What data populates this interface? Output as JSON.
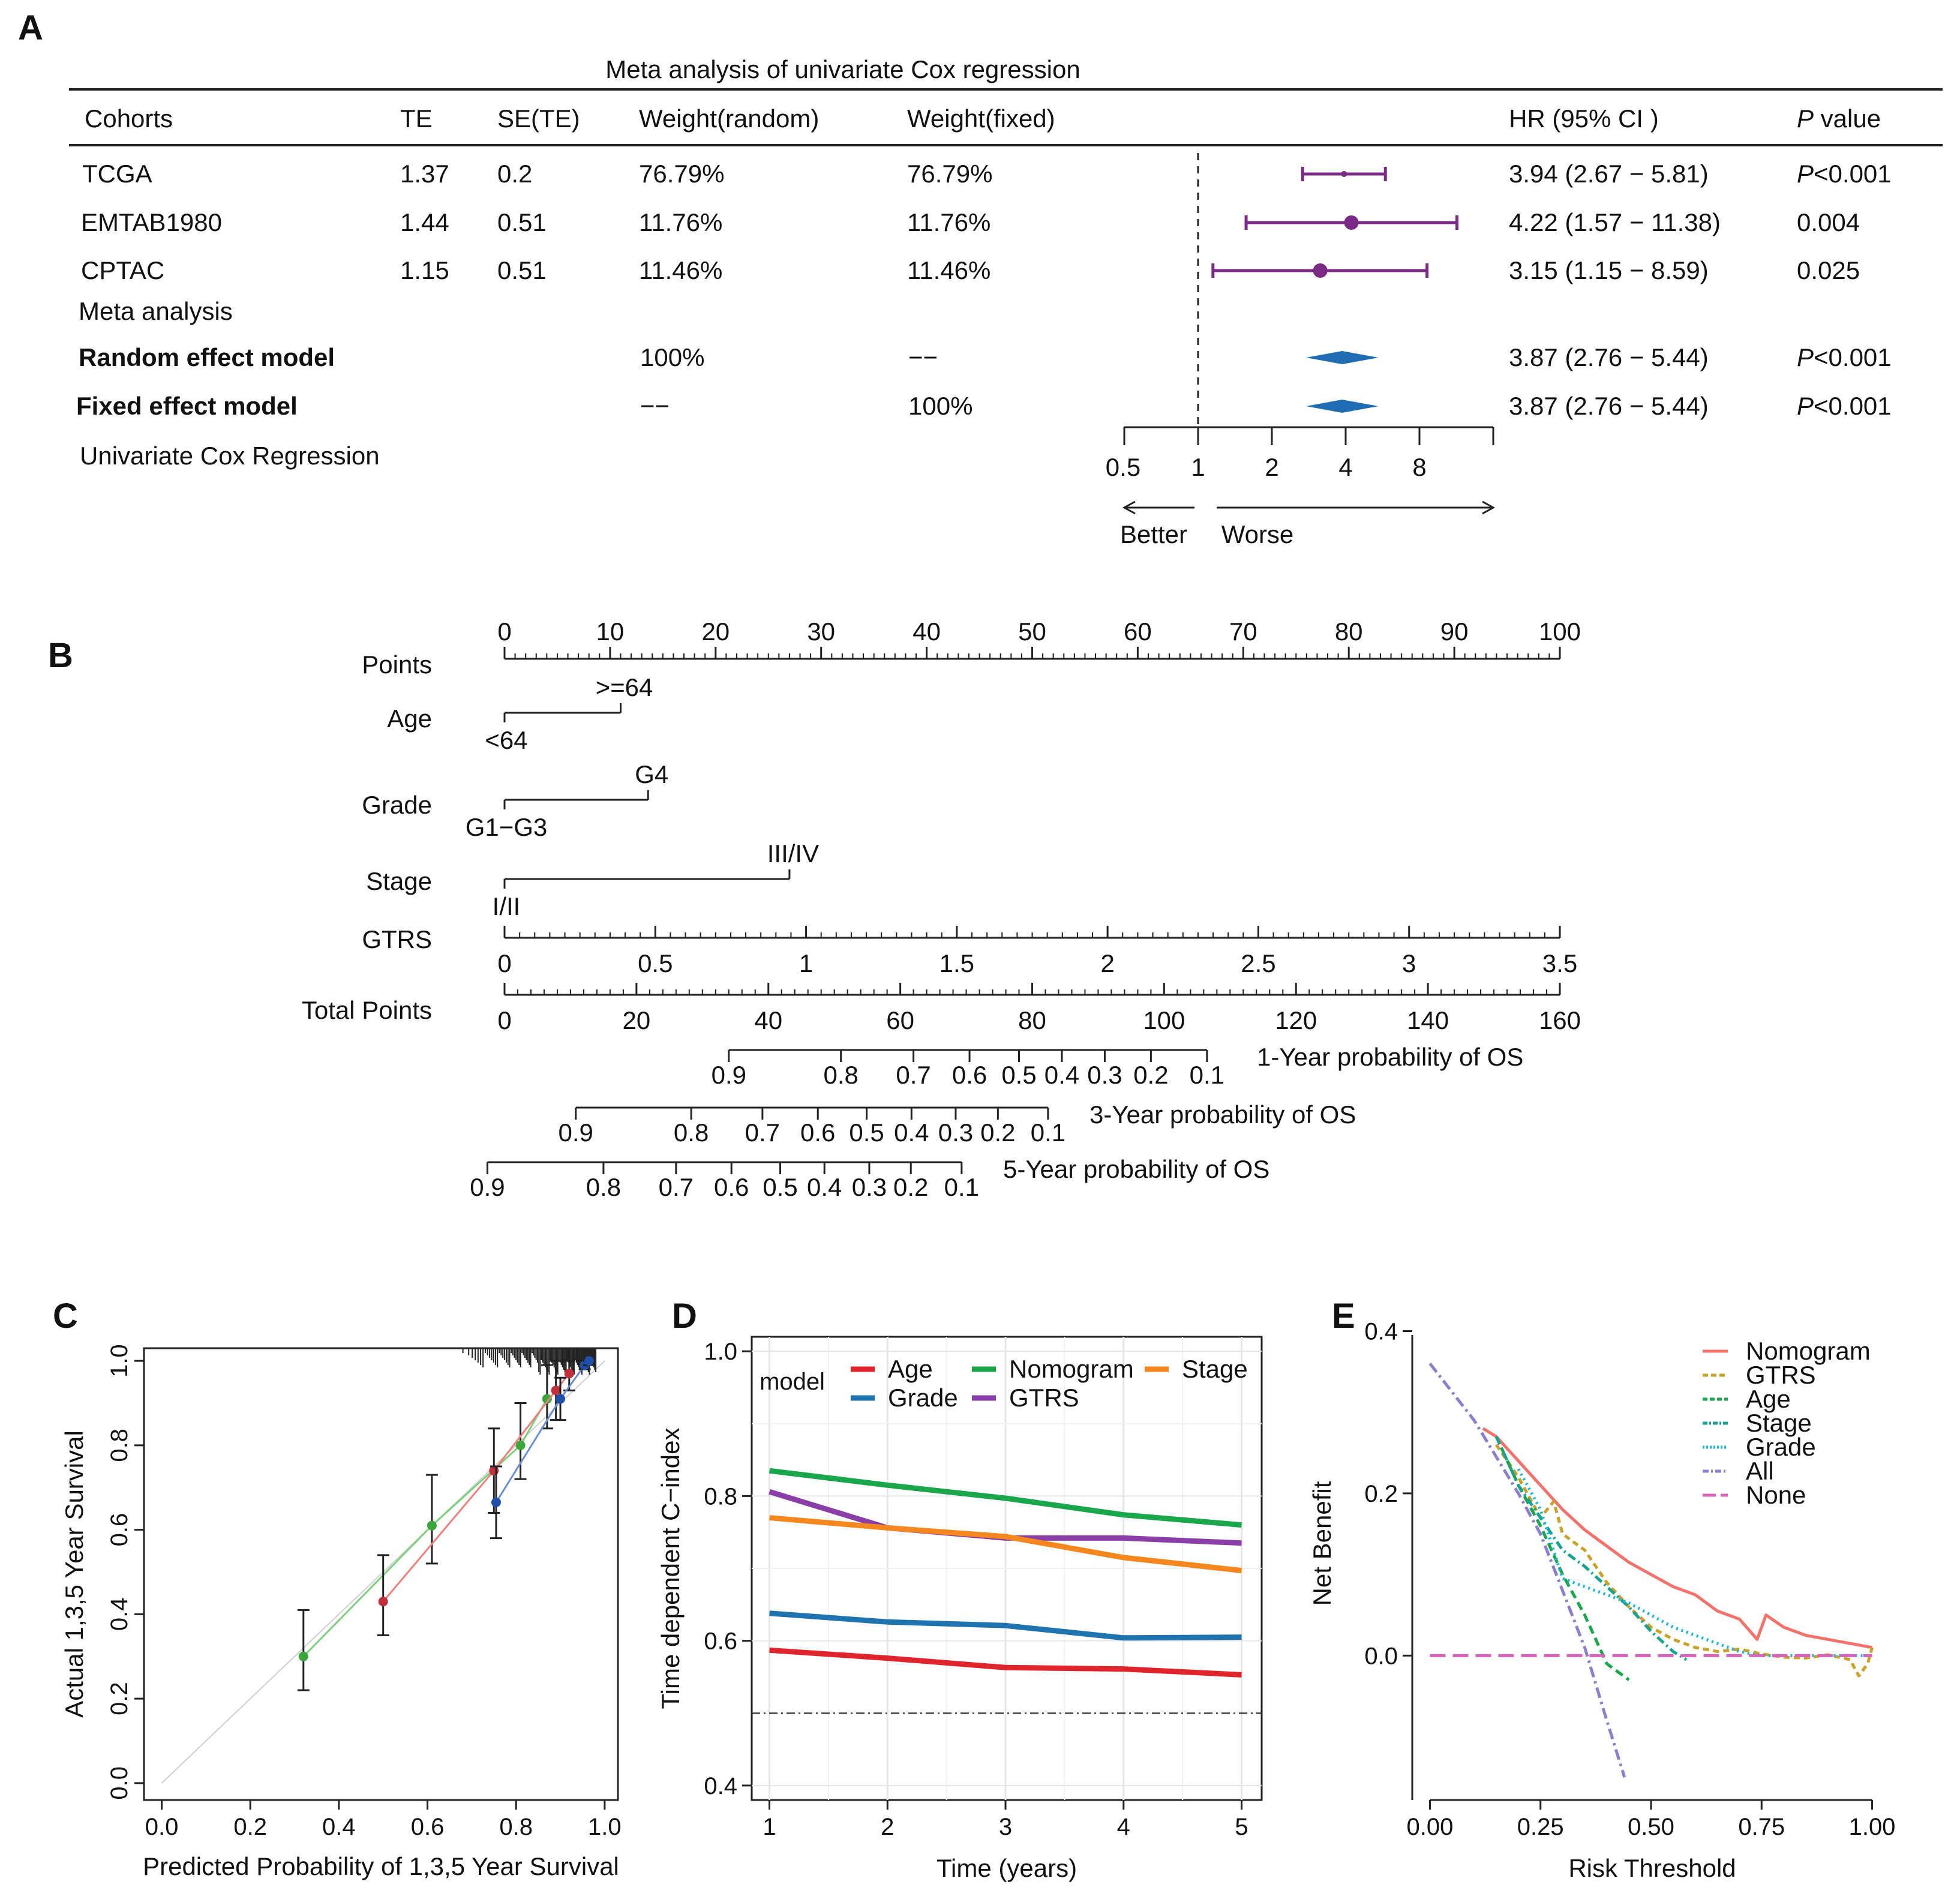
{
  "panel_letters": [
    "A",
    "B",
    "C",
    "D",
    "E"
  ],
  "colors": {
    "forest": "#7b2a86",
    "diamond": "#1f6cb3",
    "meta_label": "#1f5fb5",
    "cox_label": "#e8202a"
  },
  "chart_data": [
    {
      "panel": "A",
      "type": "table",
      "title": "Meta analysis of univariate Cox regression",
      "columns": [
        "Cohorts",
        "TE",
        "SE(TE)",
        "Weight(random)",
        "Weight(fixed)",
        "HR (95% CI )",
        "P value"
      ],
      "rows": [
        {
          "cohort": "TCGA",
          "te": "1.37",
          "se": "0.2",
          "w_random": "76.79%",
          "w_fixed": "76.79%",
          "hr_text": "3.94 (2.67 − 5.81)",
          "p_prefix": "P",
          "p_rest": "<0.001",
          "hr": 3.94,
          "lo": 2.67,
          "hi": 5.81
        },
        {
          "cohort": "EMTAB1980",
          "te": "1.44",
          "se": "0.51",
          "w_random": "11.76%",
          "w_fixed": "11.76%",
          "hr_text": "4.22 (1.57 − 11.38)",
          "p_prefix": "",
          "p_rest": "0.004",
          "hr": 4.22,
          "lo": 1.57,
          "hi": 11.38
        },
        {
          "cohort": "CPTAC",
          "te": "1.15",
          "se": "0.51",
          "w_random": "11.46%",
          "w_fixed": "11.46%",
          "hr_text": "3.15 (1.15 − 8.59)",
          "p_prefix": "",
          "p_rest": "0.025",
          "hr": 3.15,
          "lo": 1.15,
          "hi": 8.59
        }
      ],
      "meta_label": "Meta analysis",
      "models": [
        {
          "label": "Random effect model",
          "w_random": "100%",
          "w_fixed": "−−",
          "hr_text": "3.87 (2.76 − 5.44)",
          "p_prefix": "P",
          "p_rest": "<0.001",
          "hr": 3.87,
          "lo": 2.76,
          "hi": 5.44
        },
        {
          "label": "Fixed effect model",
          "w_random": "−−",
          "w_fixed": "100%",
          "hr_text": "3.87 (2.76 − 5.44)",
          "p_prefix": "P",
          "p_rest": "<0.001",
          "hr": 3.87,
          "lo": 2.76,
          "hi": 5.44
        }
      ],
      "footer_label": "Univariate Cox Regression",
      "x_scale": "log",
      "x_ticks": [
        0.5,
        1,
        2,
        4,
        8
      ],
      "x_tick_labels": [
        "0.5",
        "1",
        "2",
        "4",
        "8"
      ],
      "axis_upper": 16,
      "reference_line": 1,
      "arrow_labels": {
        "left": "Better",
        "right": "Worse"
      }
    },
    {
      "panel": "B",
      "type": "nomogram",
      "rows": [
        {
          "label": "Points",
          "kind": "scale",
          "ticks": [
            0,
            10,
            20,
            30,
            40,
            50,
            60,
            70,
            80,
            90,
            100
          ],
          "range": [
            0,
            100
          ]
        },
        {
          "label": "Age",
          "kind": "variable",
          "levels": [
            {
              "name": "<64",
              "points": 0,
              "side": "below"
            },
            {
              "name": ">=64",
              "points": 11,
              "side": "above"
            }
          ]
        },
        {
          "label": "Grade",
          "kind": "variable",
          "levels": [
            {
              "name": "G1−G3",
              "points": 0,
              "side": "below"
            },
            {
              "name": "G4",
              "points": 13.6,
              "side": "above"
            }
          ]
        },
        {
          "label": "Stage",
          "kind": "variable",
          "levels": [
            {
              "name": "I/II",
              "points": 0,
              "side": "below"
            },
            {
              "name": "III/IV",
              "points": 27,
              "side": "above"
            }
          ]
        },
        {
          "label": "GTRS",
          "kind": "scale",
          "ticks": [
            0,
            0.5,
            1,
            1.5,
            2,
            2.5,
            3,
            3.5
          ],
          "range": [
            0,
            3.5
          ]
        },
        {
          "label": "Total Points",
          "kind": "scale",
          "ticks": [
            0,
            20,
            40,
            60,
            80,
            100,
            120,
            140,
            160
          ],
          "range": [
            0,
            160
          ]
        }
      ],
      "probability_scales": [
        {
          "label": "1-Year probability of OS",
          "ticks": [
            {
              "p": "0.9",
              "tp": 34
            },
            {
              "p": "0.8",
              "tp": 51
            },
            {
              "p": "0.7",
              "tp": 62
            },
            {
              "p": "0.6",
              "tp": 70.5
            },
            {
              "p": "0.5",
              "tp": 78
            },
            {
              "p": "0.4",
              "tp": 84.5
            },
            {
              "p": "0.3",
              "tp": 91
            },
            {
              "p": "0.2",
              "tp": 98
            },
            {
              "p": "0.1",
              "tp": 106.5
            }
          ]
        },
        {
          "label": "3-Year probability of OS",
          "ticks": [
            {
              "p": "0.9",
              "tp": 10.8
            },
            {
              "p": "0.8",
              "tp": 28.3
            },
            {
              "p": "0.7",
              "tp": 39.1
            },
            {
              "p": "0.6",
              "tp": 47.5
            },
            {
              "p": "0.5",
              "tp": 54.9
            },
            {
              "p": "0.4",
              "tp": 61.7
            },
            {
              "p": "0.3",
              "tp": 68.4
            },
            {
              "p": "0.2",
              "tp": 74.8
            },
            {
              "p": "0.1",
              "tp": 82.4
            }
          ]
        },
        {
          "label": "5-Year probability of OS",
          "ticks": [
            {
              "p": "0.9",
              "tp": -2.6
            },
            {
              "p": "0.8",
              "tp": 15
            },
            {
              "p": "0.7",
              "tp": 26
            },
            {
              "p": "0.6",
              "tp": 34.4
            },
            {
              "p": "0.5",
              "tp": 41.8
            },
            {
              "p": "0.4",
              "tp": 48.5
            },
            {
              "p": "0.3",
              "tp": 55.3
            },
            {
              "p": "0.2",
              "tp": 61.6
            },
            {
              "p": "0.1",
              "tp": 69.3
            }
          ]
        }
      ]
    },
    {
      "panel": "C",
      "type": "scatter",
      "xlabel": "Predicted Probability of 1,3,5  Year Survival",
      "ylabel": "Actual 1,3,5  Year Survival",
      "xlim": [
        -0.04,
        1.03
      ],
      "ylim": [
        -0.04,
        1.03
      ],
      "x_ticks": [
        0.0,
        0.2,
        0.4,
        0.6,
        0.8,
        1.0
      ],
      "x_tick_labels": [
        "0.0",
        "0.2",
        "0.4",
        "0.6",
        "0.8",
        "1.0"
      ],
      "y_ticks": [
        0.0,
        0.2,
        0.4,
        0.6,
        0.8,
        1.0
      ],
      "y_tick_labels": [
        "0.0",
        "0.2",
        "0.4",
        "0.6",
        "0.8",
        "1.0"
      ],
      "series": [
        {
          "name": "",
          "color": "#3aa63a",
          "line_color": "#7fcf7f",
          "points": [
            {
              "x": 0.32,
              "y": 0.3,
              "lo": 0.22,
              "hi": 0.41
            },
            {
              "x": 0.61,
              "y": 0.61,
              "lo": 0.52,
              "hi": 0.73
            },
            {
              "x": 0.81,
              "y": 0.8,
              "lo": 0.72,
              "hi": 0.9
            },
            {
              "x": 0.87,
              "y": 0.91,
              "lo": 0.84,
              "hi": 0.99
            }
          ]
        },
        {
          "name": "",
          "color": "#c0303a",
          "line_color": "#f08080",
          "points": [
            {
              "x": 0.5,
              "y": 0.43,
              "lo": 0.35,
              "hi": 0.54
            },
            {
              "x": 0.75,
              "y": 0.74,
              "lo": 0.64,
              "hi": 0.84
            },
            {
              "x": 0.89,
              "y": 0.93,
              "lo": 0.86,
              "hi": 1.0
            },
            {
              "x": 0.92,
              "y": 0.97,
              "lo": 0.93,
              "hi": 1.0
            }
          ]
        },
        {
          "name": "",
          "color": "#1f4fa8",
          "line_color": "#6b8fd6",
          "points": [
            {
              "x": 0.755,
              "y": 0.665,
              "lo": 0.58,
              "hi": 0.75
            },
            {
              "x": 0.9,
              "y": 0.91,
              "lo": 0.86,
              "hi": 0.96
            },
            {
              "x": 0.955,
              "y": 0.99,
              "lo": 0.98,
              "hi": 1.0
            },
            {
              "x": 0.965,
              "y": 1.0,
              "lo": 0.99,
              "hi": 1.0
            }
          ]
        }
      ],
      "diagonal": true
    },
    {
      "panel": "D",
      "type": "line",
      "xlabel": "Time (years)",
      "ylabel": "Time dependent C−index",
      "x": [
        1,
        2,
        3,
        4,
        5
      ],
      "xlim": [
        0.85,
        5.17
      ],
      "ylim": [
        0.38,
        1.02
      ],
      "x_ticks": [
        1,
        2,
        3,
        4,
        5
      ],
      "x_tick_labels": [
        "1",
        "2",
        "3",
        "4",
        "5"
      ],
      "y_ticks": [
        0.4,
        0.6,
        0.8,
        1.0
      ],
      "y_tick_labels": [
        "0.4",
        "0.6",
        "0.8",
        "1.0"
      ],
      "reference_y": 0.5,
      "legend_title": "model",
      "legend_position": "top",
      "series": [
        {
          "name": "Age",
          "color": "#e0242b",
          "values": [
            0.587,
            0.576,
            0.563,
            0.561,
            0.553
          ]
        },
        {
          "name": "Grade",
          "color": "#1f74b0",
          "values": [
            0.638,
            0.626,
            0.621,
            0.604,
            0.605
          ]
        },
        {
          "name": "Nomogram",
          "color": "#1aa64a",
          "values": [
            0.835,
            0.815,
            0.797,
            0.774,
            0.76
          ]
        },
        {
          "name": "GTRS",
          "color": "#8a3fa8",
          "values": [
            0.806,
            0.756,
            0.742,
            0.742,
            0.735
          ]
        },
        {
          "name": "Stage",
          "color": "#f6871f",
          "values": [
            0.77,
            0.756,
            0.744,
            0.715,
            0.697
          ]
        }
      ]
    },
    {
      "panel": "E",
      "type": "line",
      "xlabel": "Risk Threshold",
      "ylabel": "Net Benefit",
      "xlim": [
        -0.04,
        1.04
      ],
      "ylim": [
        -0.178,
        0.41
      ],
      "x_ticks": [
        0.0,
        0.25,
        0.5,
        0.75,
        1.0
      ],
      "x_tick_labels": [
        "0.00",
        "0.25",
        "0.50",
        "0.75",
        "1.00"
      ],
      "y_ticks": [
        0.0,
        0.2,
        0.4
      ],
      "y_tick_labels": [
        "0.0",
        "0.2",
        "0.4"
      ],
      "legend_position": "top-right",
      "series": [
        {
          "name": "Nomogram",
          "color": "#f4726b",
          "dash": "solid",
          "x": [
            0.12,
            0.15,
            0.2,
            0.25,
            0.3,
            0.35,
            0.4,
            0.45,
            0.5,
            0.55,
            0.6,
            0.65,
            0.7,
            0.74,
            0.76,
            0.8,
            0.85,
            0.9,
            0.95,
            1.0
          ],
          "y": [
            0.28,
            0.27,
            0.24,
            0.21,
            0.18,
            0.155,
            0.135,
            0.115,
            0.1,
            0.085,
            0.075,
            0.055,
            0.045,
            0.02,
            0.05,
            0.035,
            0.025,
            0.02,
            0.015,
            0.01
          ]
        },
        {
          "name": "GTRS",
          "color": "#c9a227",
          "dash": "10 7",
          "x": [
            0.15,
            0.2,
            0.25,
            0.28,
            0.3,
            0.35,
            0.4,
            0.45,
            0.5,
            0.55,
            0.6,
            0.65,
            0.7,
            0.75,
            0.8,
            0.85,
            0.9,
            0.95,
            0.97,
            0.99,
            1.0
          ],
          "y": [
            0.26,
            0.22,
            0.17,
            0.19,
            0.15,
            0.13,
            0.09,
            0.06,
            0.035,
            0.02,
            0.01,
            0.005,
            0.008,
            0.002,
            -0.002,
            -0.003,
            0.001,
            -0.005,
            -0.025,
            -0.01,
            0.01
          ]
        },
        {
          "name": "Age",
          "color": "#1aa64a",
          "dash": "14 8",
          "x": [
            0.15,
            0.2,
            0.25,
            0.3,
            0.35,
            0.4,
            0.45
          ],
          "y": [
            0.27,
            0.21,
            0.16,
            0.1,
            0.05,
            -0.01,
            -0.03
          ]
        },
        {
          "name": "Stage",
          "color": "#17a392",
          "dash": "14 6 3 6",
          "x": [
            0.15,
            0.2,
            0.25,
            0.3,
            0.35,
            0.4,
            0.45,
            0.5,
            0.55,
            0.58
          ],
          "y": [
            0.27,
            0.21,
            0.17,
            0.13,
            0.11,
            0.085,
            0.06,
            0.03,
            0.005,
            -0.005
          ]
        },
        {
          "name": "Grade",
          "color": "#1ab5e0",
          "dash": "3 6",
          "x": [
            0.2,
            0.25,
            0.3,
            0.35,
            0.4,
            0.45,
            0.5,
            0.55,
            0.6,
            0.65,
            0.7,
            0.75,
            0.8,
            0.85,
            0.9,
            1.0
          ],
          "y": [
            0.23,
            0.18,
            0.095,
            0.085,
            0.075,
            0.065,
            0.05,
            0.035,
            0.025,
            0.015,
            0.005,
            0.0,
            0.0,
            0.0,
            0.0,
            0.0
          ]
        },
        {
          "name": "All",
          "color": "#8c7fcf",
          "dash": "18 7 4 7",
          "x": [
            0.0,
            0.1,
            0.2,
            0.25,
            0.3,
            0.35,
            0.4,
            0.44
          ],
          "y": [
            0.36,
            0.29,
            0.2,
            0.15,
            0.08,
            0.01,
            -0.08,
            -0.15
          ]
        },
        {
          "name": "None",
          "color": "#d863b8",
          "dash": "26 12",
          "x": [
            0.0,
            1.0
          ],
          "y": [
            0.0,
            0.0
          ]
        }
      ]
    }
  ]
}
